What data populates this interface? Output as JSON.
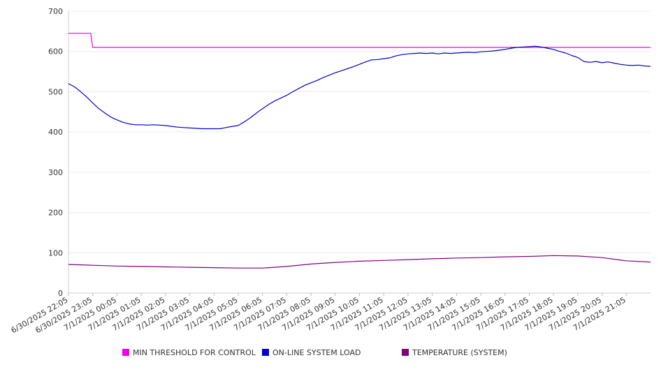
{
  "chart_data": {
    "type": "line",
    "title": "",
    "xlabel": "",
    "ylabel": "",
    "ylim": [
      0,
      700
    ],
    "yticks": [
      "0",
      "100",
      "200",
      "300",
      "400",
      "500",
      "600",
      "700"
    ],
    "x_tick_labels": [
      "6/30/2025 22:05",
      "6/30/2025 23:05",
      "7/1/2025 00:05",
      "7/1/2025 01:05",
      "7/1/2025 02:05",
      "7/1/2025 03:05",
      "7/1/2025 04:05",
      "7/1/2025 05:05",
      "7/1/2025 06:05",
      "7/1/2025 07:05",
      "7/1/2025 08:05",
      "7/1/2025 09:05",
      "7/1/2025 10:05",
      "7/1/2025 11:05",
      "7/1/2025 12:05",
      "7/1/2025 13:05",
      "7/1/2025 14:05",
      "7/1/2025 15:05",
      "7/1/2025 16:05",
      "7/1/2025 17:05",
      "7/1/2025 18:05",
      "7/1/2025 19:05",
      "7/1/2025 20:05",
      "7/1/2025 21:05"
    ],
    "x_range": [
      "6/30/2025 22:05",
      "7/1/2025 22:05"
    ],
    "grid": true,
    "legend_position": "bottom",
    "series": [
      {
        "name": "MIN THRESHOLD FOR CONTROL",
        "color": "#ee00ee",
        "points": [
          [
            "6/30/2025 22:05",
            645
          ],
          [
            "6/30/2025 23:00",
            645
          ],
          [
            "6/30/2025 23:05",
            610
          ],
          [
            "7/1/2025 22:05",
            610
          ]
        ]
      },
      {
        "name": "ON-LINE SYSTEM LOAD",
        "color": "#0000cc",
        "points": [
          [
            "6/30/2025 22:05",
            520
          ],
          [
            "6/30/2025 22:20",
            512
          ],
          [
            "6/30/2025 22:35",
            500
          ],
          [
            "6/30/2025 22:50",
            487
          ],
          [
            "6/30/2025 23:05",
            472
          ],
          [
            "6/30/2025 23:20",
            458
          ],
          [
            "6/30/2025 23:35",
            447
          ],
          [
            "6/30/2025 23:50",
            437
          ],
          [
            "7/1/2025 00:05",
            430
          ],
          [
            "7/1/2025 00:20",
            424
          ],
          [
            "7/1/2025 00:35",
            420
          ],
          [
            "7/1/2025 00:50",
            418
          ],
          [
            "7/1/2025 01:05",
            418
          ],
          [
            "7/1/2025 01:20",
            417
          ],
          [
            "7/1/2025 01:35",
            418
          ],
          [
            "7/1/2025 01:50",
            417
          ],
          [
            "7/1/2025 02:05",
            416
          ],
          [
            "7/1/2025 02:20",
            414
          ],
          [
            "7/1/2025 02:35",
            412
          ],
          [
            "7/1/2025 02:50",
            411
          ],
          [
            "7/1/2025 03:05",
            410
          ],
          [
            "7/1/2025 03:20",
            409
          ],
          [
            "7/1/2025 03:35",
            408
          ],
          [
            "7/1/2025 03:50",
            408
          ],
          [
            "7/1/2025 04:05",
            408
          ],
          [
            "7/1/2025 04:20",
            408
          ],
          [
            "7/1/2025 04:35",
            411
          ],
          [
            "7/1/2025 04:50",
            414
          ],
          [
            "7/1/2025 05:05",
            416
          ],
          [
            "7/1/2025 05:20",
            425
          ],
          [
            "7/1/2025 05:35",
            435
          ],
          [
            "7/1/2025 05:50",
            447
          ],
          [
            "7/1/2025 06:05",
            458
          ],
          [
            "7/1/2025 06:20",
            468
          ],
          [
            "7/1/2025 06:35",
            477
          ],
          [
            "7/1/2025 06:50",
            484
          ],
          [
            "7/1/2025 07:05",
            491
          ],
          [
            "7/1/2025 07:20",
            500
          ],
          [
            "7/1/2025 07:35",
            508
          ],
          [
            "7/1/2025 07:50",
            516
          ],
          [
            "7/1/2025 08:05",
            522
          ],
          [
            "7/1/2025 08:20",
            528
          ],
          [
            "7/1/2025 08:35",
            535
          ],
          [
            "7/1/2025 08:50",
            541
          ],
          [
            "7/1/2025 09:05",
            547
          ],
          [
            "7/1/2025 09:20",
            552
          ],
          [
            "7/1/2025 09:35",
            557
          ],
          [
            "7/1/2025 09:50",
            562
          ],
          [
            "7/1/2025 10:05",
            568
          ],
          [
            "7/1/2025 10:20",
            574
          ],
          [
            "7/1/2025 10:35",
            579
          ],
          [
            "7/1/2025 10:50",
            580
          ],
          [
            "7/1/2025 11:05",
            582
          ],
          [
            "7/1/2025 11:20",
            584
          ],
          [
            "7/1/2025 11:35",
            589
          ],
          [
            "7/1/2025 11:50",
            592
          ],
          [
            "7/1/2025 12:05",
            594
          ],
          [
            "7/1/2025 12:20",
            595
          ],
          [
            "7/1/2025 12:35",
            596
          ],
          [
            "7/1/2025 12:50",
            595
          ],
          [
            "7/1/2025 13:05",
            596
          ],
          [
            "7/1/2025 13:20",
            594
          ],
          [
            "7/1/2025 13:35",
            596
          ],
          [
            "7/1/2025 13:50",
            595
          ],
          [
            "7/1/2025 14:05",
            596
          ],
          [
            "7/1/2025 14:20",
            597
          ],
          [
            "7/1/2025 14:35",
            598
          ],
          [
            "7/1/2025 14:50",
            597
          ],
          [
            "7/1/2025 15:05",
            599
          ],
          [
            "7/1/2025 15:20",
            600
          ],
          [
            "7/1/2025 15:35",
            601
          ],
          [
            "7/1/2025 15:50",
            603
          ],
          [
            "7/1/2025 16:05",
            605
          ],
          [
            "7/1/2025 16:20",
            608
          ],
          [
            "7/1/2025 16:35",
            610
          ],
          [
            "7/1/2025 16:50",
            611
          ],
          [
            "7/1/2025 17:05",
            612
          ],
          [
            "7/1/2025 17:20",
            613
          ],
          [
            "7/1/2025 17:35",
            611
          ],
          [
            "7/1/2025 17:50",
            608
          ],
          [
            "7/1/2025 18:05",
            605
          ],
          [
            "7/1/2025 18:20",
            600
          ],
          [
            "7/1/2025 18:35",
            596
          ],
          [
            "7/1/2025 18:50",
            590
          ],
          [
            "7/1/2025 19:05",
            585
          ],
          [
            "7/1/2025 19:20",
            575
          ],
          [
            "7/1/2025 19:35",
            573
          ],
          [
            "7/1/2025 19:50",
            575
          ],
          [
            "7/1/2025 20:05",
            572
          ],
          [
            "7/1/2025 20:20",
            574
          ],
          [
            "7/1/2025 20:35",
            571
          ],
          [
            "7/1/2025 20:50",
            568
          ],
          [
            "7/1/2025 21:05",
            566
          ],
          [
            "7/1/2025 21:20",
            565
          ],
          [
            "7/1/2025 21:35",
            566
          ],
          [
            "7/1/2025 21:50",
            564
          ],
          [
            "7/1/2025 22:05",
            563
          ]
        ]
      },
      {
        "name": "TEMPERATURE (SYSTEM)",
        "color": "#800080",
        "points": [
          [
            "6/30/2025 22:05",
            71
          ],
          [
            "6/30/2025 23:05",
            69
          ],
          [
            "7/1/2025 00:05",
            67
          ],
          [
            "7/1/2025 01:05",
            66
          ],
          [
            "7/1/2025 02:05",
            65
          ],
          [
            "7/1/2025 03:05",
            64
          ],
          [
            "7/1/2025 04:05",
            63
          ],
          [
            "7/1/2025 05:05",
            62
          ],
          [
            "7/1/2025 06:05",
            62
          ],
          [
            "7/1/2025 07:05",
            66
          ],
          [
            "7/1/2025 08:05",
            72
          ],
          [
            "7/1/2025 09:05",
            76
          ],
          [
            "7/1/2025 10:05",
            79
          ],
          [
            "7/1/2025 11:05",
            81
          ],
          [
            "7/1/2025 12:05",
            83
          ],
          [
            "7/1/2025 13:05",
            85
          ],
          [
            "7/1/2025 14:05",
            87
          ],
          [
            "7/1/2025 15:05",
            88
          ],
          [
            "7/1/2025 16:05",
            90
          ],
          [
            "7/1/2025 17:05",
            91
          ],
          [
            "7/1/2025 18:05",
            93
          ],
          [
            "7/1/2025 19:05",
            92
          ],
          [
            "7/1/2025 20:05",
            88
          ],
          [
            "7/1/2025 21:05",
            80
          ],
          [
            "7/1/2025 22:05",
            77
          ]
        ]
      }
    ]
  }
}
